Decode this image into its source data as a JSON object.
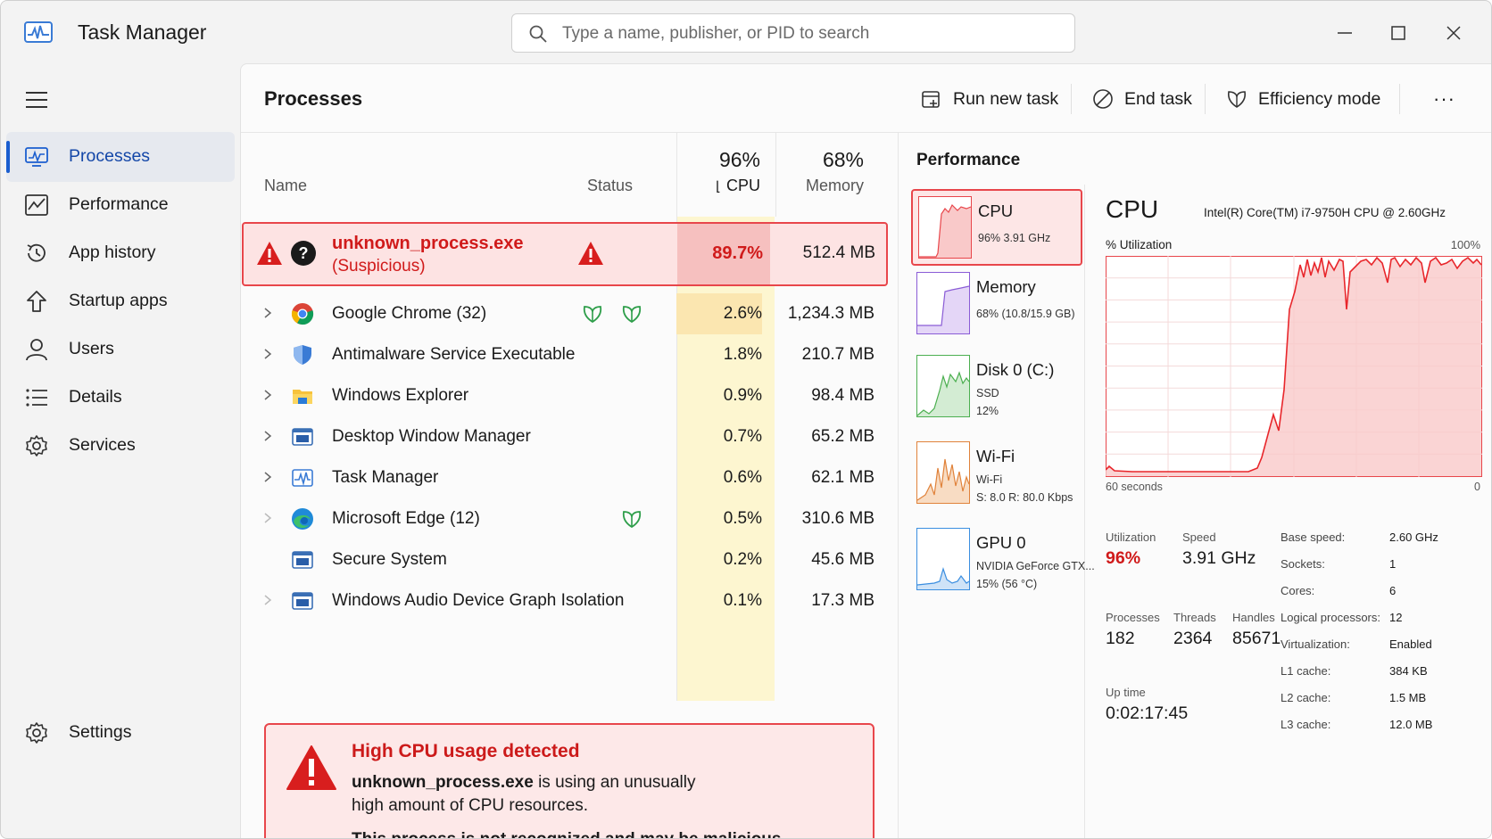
{
  "app": {
    "title": "Task Manager",
    "search_placeholder": "Type a name, publisher, or PID to search"
  },
  "sidebar": {
    "items": [
      {
        "label": "Processes",
        "icon": "processes-icon"
      },
      {
        "label": "Performance",
        "icon": "performance-icon"
      },
      {
        "label": "App history",
        "icon": "app-history-icon"
      },
      {
        "label": "Startup apps",
        "icon": "startup-apps-icon"
      },
      {
        "label": "Users",
        "icon": "users-icon"
      },
      {
        "label": "Details",
        "icon": "details-icon"
      },
      {
        "label": "Services",
        "icon": "services-icon"
      }
    ],
    "settings_label": "Settings"
  },
  "main": {
    "title": "Processes",
    "toolbar": {
      "run_new_task": "Run new task",
      "end_task": "End task",
      "efficiency_mode": "Efficiency mode",
      "more": "···"
    }
  },
  "table": {
    "headers": {
      "name": "Name",
      "status": "Status",
      "cpu_pct": "96%",
      "cpu": "CPU",
      "mem_pct": "68%",
      "memory": "Memory"
    },
    "suspicious": {
      "name": "unknown_process.exe",
      "sub": "(Suspicious)",
      "cpu": "89.7%",
      "memory": "512.4 MB"
    },
    "rows": [
      {
        "name": "Google Chrome (32)",
        "cpu": "2.6%",
        "memory": "1,234.3 MB",
        "icon": "chrome-icon",
        "expandable": true,
        "efficiency": true
      },
      {
        "name": "Antimalware Service Executable",
        "cpu": "1.8%",
        "memory": "210.7 MB",
        "icon": "shield-icon",
        "expandable": true,
        "efficiency": false
      },
      {
        "name": "Windows Explorer",
        "cpu": "0.9%",
        "memory": "98.4 MB",
        "icon": "folder-icon",
        "expandable": true,
        "efficiency": false
      },
      {
        "name": "Desktop Window Manager",
        "cpu": "0.7%",
        "memory": "65.2 MB",
        "icon": "window-icon",
        "expandable": true,
        "efficiency": false
      },
      {
        "name": "Task Manager",
        "cpu": "0.6%",
        "memory": "62.1 MB",
        "icon": "task-manager-icon",
        "expandable": true,
        "efficiency": false
      },
      {
        "name": "Microsoft Edge (12)",
        "cpu": "0.5%",
        "memory": "310.6 MB",
        "icon": "edge-icon",
        "expandable": true,
        "efficiency": true
      },
      {
        "name": "Secure System",
        "cpu": "0.2%",
        "memory": "45.6 MB",
        "icon": "window-icon",
        "expandable": false,
        "efficiency": false
      },
      {
        "name": "Windows Audio Device Graph Isolation",
        "cpu": "0.1%",
        "memory": "17.3 MB",
        "icon": "window-icon",
        "expandable": true,
        "efficiency": false
      }
    ]
  },
  "alert": {
    "title": "High CPU usage detected",
    "process": "unknown_process.exe",
    "line1_rest": " is using an unusually",
    "line2": "high amount of CPU resources.",
    "line3": "This process is not recognized and may be malicious."
  },
  "performance": {
    "title": "Performance",
    "cards": [
      {
        "title": "CPU",
        "sub1": "96%  3.91 GHz",
        "sub2": "",
        "sub3": "",
        "color": "#e8464b"
      },
      {
        "title": "Memory",
        "sub1": "68% (10.8/15.9 GB)",
        "sub2": "",
        "sub3": "",
        "color": "#8a5cd6"
      },
      {
        "title": "Disk 0 (C:)",
        "sub1": "SSD",
        "sub2": "12%",
        "sub3": "",
        "color": "#4caf50"
      },
      {
        "title": "Wi-Fi",
        "sub1": "Wi-Fi",
        "sub2": "S: 8.0  R: 80.0 Kbps",
        "sub3": "",
        "color": "#e0823a"
      },
      {
        "title": "GPU 0",
        "sub1": "NVIDIA GeForce GTX...",
        "sub2": "15% (56 °C)",
        "sub3": "",
        "color": "#3a8ee0"
      }
    ],
    "cpu_detail": {
      "title": "CPU",
      "model": "Intel(R) Core(TM) i7-9750H CPU @ 2.60GHz",
      "util_label": "% Utilization",
      "util_max": "100%",
      "time_left": "60 seconds",
      "time_right": "0",
      "utilization_label": "Utilization",
      "utilization": "96%",
      "speed_label": "Speed",
      "speed": "3.91 GHz",
      "processes_label": "Processes",
      "processes": "182",
      "threads_label": "Threads",
      "threads": "2364",
      "handles_label": "Handles",
      "handles": "85671",
      "uptime_label": "Up time",
      "uptime": "0:02:17:45",
      "specs": [
        {
          "label": "Base speed:",
          "value": "2.60 GHz"
        },
        {
          "label": "Sockets:",
          "value": "1"
        },
        {
          "label": "Cores:",
          "value": "6"
        },
        {
          "label": "Logical processors:",
          "value": "12"
        },
        {
          "label": "Virtualization:",
          "value": "Enabled"
        },
        {
          "label": "L1 cache:",
          "value": "384 KB"
        },
        {
          "label": "L2 cache:",
          "value": "1.5 MB"
        },
        {
          "label": "L3 cache:",
          "value": "12.0 MB"
        }
      ]
    }
  },
  "colors": {
    "accent": "#1b5ecf",
    "danger": "#e8464b",
    "cpu_heat": "#fdf6d0",
    "efficiency_leaf": "#2e9e4a"
  }
}
